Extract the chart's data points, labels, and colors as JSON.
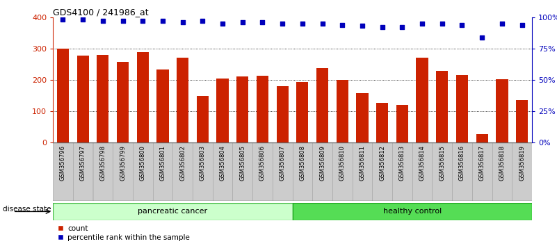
{
  "title": "GDS4100 / 241986_at",
  "samples": [
    "GSM356796",
    "GSM356797",
    "GSM356798",
    "GSM356799",
    "GSM356800",
    "GSM356801",
    "GSM356802",
    "GSM356803",
    "GSM356804",
    "GSM356805",
    "GSM356806",
    "GSM356807",
    "GSM356808",
    "GSM356809",
    "GSM356810",
    "GSM356811",
    "GSM356812",
    "GSM356813",
    "GSM356814",
    "GSM356815",
    "GSM356816",
    "GSM356817",
    "GSM356818",
    "GSM356819"
  ],
  "counts": [
    300,
    277,
    280,
    258,
    289,
    233,
    270,
    149,
    204,
    212,
    213,
    180,
    193,
    238,
    200,
    158,
    128,
    120,
    270,
    230,
    215,
    28,
    203,
    135
  ],
  "percentiles": [
    98,
    98,
    97,
    97,
    97,
    97,
    96,
    97,
    95,
    96,
    96,
    95,
    95,
    95,
    94,
    93,
    92,
    92,
    95,
    95,
    94,
    84,
    95,
    94
  ],
  "pc_group": [
    0,
    12
  ],
  "hc_group": [
    12,
    24
  ],
  "bar_color": "#CC2200",
  "dot_color": "#0000BB",
  "pc_color_light": "#CCFFCC",
  "pc_color_border": "#44BB44",
  "hc_color_light": "#55DD55",
  "hc_color_border": "#22AA22",
  "tick_bg_color": "#CCCCCC",
  "yticks_left": [
    0,
    100,
    200,
    300,
    400
  ],
  "yticks_right": [
    0,
    25,
    50,
    75,
    100
  ],
  "legend_items": [
    "count",
    "percentile rank within the sample"
  ],
  "bg_color": "#FFFFFF"
}
